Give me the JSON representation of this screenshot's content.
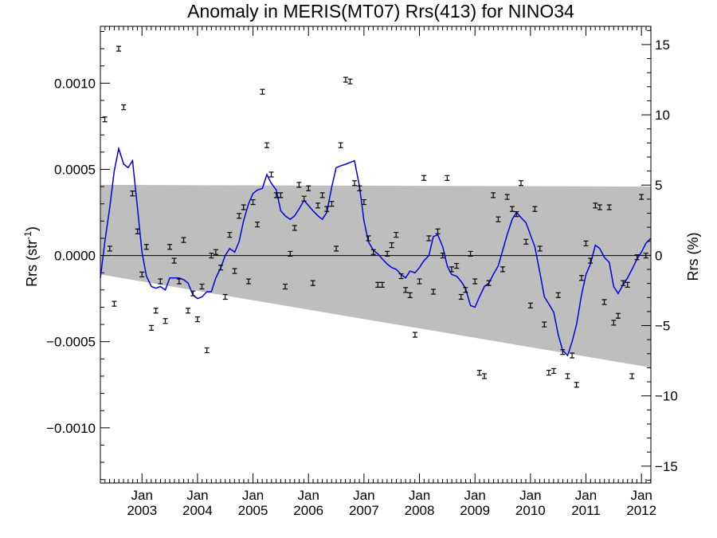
{
  "chart_data": {
    "type": "scatter",
    "title": "Anomaly in MERIS(MT07) Rrs(413) for NINO34",
    "ylabel_left": "Rrs (str",
    "ylabel_left_sup": "-1",
    "ylabel_left_close": ")",
    "ylabel_right": "Rrs (%)",
    "xlim": [
      2002.25,
      2012.17
    ],
    "ylim_left": [
      -0.00132,
      0.00133
    ],
    "ylim_right": [
      -16.2,
      16.3
    ],
    "x_ticks": [
      {
        "x": 2003.0,
        "month": "Jan",
        "year": "2003"
      },
      {
        "x": 2004.0,
        "month": "Jan",
        "year": "2004"
      },
      {
        "x": 2005.0,
        "month": "Jan",
        "year": "2005"
      },
      {
        "x": 2006.0,
        "month": "Jan",
        "year": "2006"
      },
      {
        "x": 2007.0,
        "month": "Jan",
        "year": "2007"
      },
      {
        "x": 2008.0,
        "month": "Jan",
        "year": "2008"
      },
      {
        "x": 2009.0,
        "month": "Jan",
        "year": "2009"
      },
      {
        "x": 2010.0,
        "month": "Jan",
        "year": "2010"
      },
      {
        "x": 2011.0,
        "month": "Jan",
        "year": "2011"
      },
      {
        "x": 2012.0,
        "month": "Jan",
        "year": "2012"
      }
    ],
    "y_left_ticks": [
      {
        "value": 0.001,
        "label": "0.0010"
      },
      {
        "value": 0.0005,
        "label": "0.0005"
      },
      {
        "value": 0.0,
        "label": "0.0000"
      },
      {
        "value": -0.0005,
        "label": "−0.0005"
      },
      {
        "value": -0.001,
        "label": "−0.0010"
      }
    ],
    "y_left_minor_step": 0.0001,
    "y_right_ticks": [
      {
        "value": 15,
        "label": "15"
      },
      {
        "value": 10,
        "label": "10"
      },
      {
        "value": 5,
        "label": "5"
      },
      {
        "value": 0,
        "label": "0"
      },
      {
        "value": -5,
        "label": "−5"
      },
      {
        "value": -10,
        "label": "−10"
      },
      {
        "value": -15,
        "label": "−15"
      }
    ],
    "y_right_minor_step": 1,
    "uncertainty_band": {
      "upper": [
        [
          2002.25,
          0.00041
        ],
        [
          2012.17,
          0.0004
        ]
      ],
      "lower": [
        [
          2002.25,
          -0.00011
        ],
        [
          2012.17,
          -0.00065
        ]
      ],
      "color": "#bebebe"
    },
    "zero_line": 0.0,
    "colors": {
      "smoothed_line": "#0000dd",
      "points": "#000000",
      "axes": "#000000"
    },
    "points": [
      [
        2002.33,
        0.00079
      ],
      [
        2002.42,
        4e-05
      ],
      [
        2002.5,
        -0.00028
      ],
      [
        2002.58,
        0.0012
      ],
      [
        2002.67,
        0.00086
      ],
      [
        2002.83,
        0.00036
      ],
      [
        2002.92,
        0.00014
      ],
      [
        2003.0,
        -0.00011
      ],
      [
        2003.08,
        5e-05
      ],
      [
        2003.17,
        -0.00042
      ],
      [
        2003.25,
        -0.00032
      ],
      [
        2003.33,
        -0.00015
      ],
      [
        2003.42,
        -0.00038
      ],
      [
        2003.5,
        5e-05
      ],
      [
        2003.58,
        -3e-05
      ],
      [
        2003.67,
        -0.00015
      ],
      [
        2003.75,
        9e-05
      ],
      [
        2003.83,
        -0.00032
      ],
      [
        2003.92,
        -0.00022
      ],
      [
        2004.0,
        -0.00037
      ],
      [
        2004.08,
        -0.00018
      ],
      [
        2004.17,
        -0.00055
      ],
      [
        2004.25,
        0.0
      ],
      [
        2004.33,
        2e-05
      ],
      [
        2004.42,
        -7e-05
      ],
      [
        2004.5,
        -0.00024
      ],
      [
        2004.58,
        0.00012
      ],
      [
        2004.67,
        -9e-05
      ],
      [
        2004.75,
        0.00023
      ],
      [
        2004.83,
        0.00028
      ],
      [
        2004.92,
        -0.00015
      ],
      [
        2005.0,
        0.00031
      ],
      [
        2005.08,
        0.00018
      ],
      [
        2005.17,
        0.00095
      ],
      [
        2005.25,
        0.00064
      ],
      [
        2005.33,
        0.00047
      ],
      [
        2005.42,
        0.00035
      ],
      [
        2005.5,
        0.00035
      ],
      [
        2005.58,
        -0.00018
      ],
      [
        2005.67,
        1e-05
      ],
      [
        2005.75,
        0.00016
      ],
      [
        2005.83,
        0.00041
      ],
      [
        2005.92,
        0.00033
      ],
      [
        2006.0,
        0.00039
      ],
      [
        2006.08,
        -0.00016
      ],
      [
        2006.17,
        0.00029
      ],
      [
        2006.25,
        0.00035
      ],
      [
        2006.33,
        0.00027
      ],
      [
        2006.42,
        0.0003
      ],
      [
        2006.5,
        4e-05
      ],
      [
        2006.58,
        0.00064
      ],
      [
        2006.67,
        0.00102
      ],
      [
        2006.75,
        0.00101
      ],
      [
        2006.83,
        0.00042
      ],
      [
        2006.92,
        0.00039
      ],
      [
        2007.0,
        0.00031
      ],
      [
        2007.08,
        0.0001
      ],
      [
        2007.17,
        2e-05
      ],
      [
        2007.25,
        -0.00017
      ],
      [
        2007.33,
        -0.00017
      ],
      [
        2007.42,
        1e-05
      ],
      [
        2007.5,
        6e-05
      ],
      [
        2007.58,
        0.00012
      ],
      [
        2007.67,
        -0.00012
      ],
      [
        2007.75,
        -0.0002
      ],
      [
        2007.83,
        -0.00023
      ],
      [
        2007.92,
        -0.00046
      ],
      [
        2008.0,
        -0.00015
      ],
      [
        2008.08,
        0.00045
      ],
      [
        2008.17,
        0.0001
      ],
      [
        2008.25,
        -0.00021
      ],
      [
        2008.33,
        0.00014
      ],
      [
        2008.42,
        0.0
      ],
      [
        2008.5,
        0.00045
      ],
      [
        2008.58,
        -8e-05
      ],
      [
        2008.67,
        -6e-05
      ],
      [
        2008.75,
        -0.00024
      ],
      [
        2008.83,
        -0.0002
      ],
      [
        2008.92,
        1e-05
      ],
      [
        2009.0,
        -0.00015
      ],
      [
        2009.08,
        -0.00068
      ],
      [
        2009.17,
        -0.0007
      ],
      [
        2009.25,
        -0.00016
      ],
      [
        2009.33,
        0.00035
      ],
      [
        2009.42,
        0.00021
      ],
      [
        2009.5,
        -8e-05
      ],
      [
        2009.58,
        0.00034
      ],
      [
        2009.67,
        0.00027
      ],
      [
        2009.75,
        0.00024
      ],
      [
        2009.83,
        0.00042
      ],
      [
        2009.92,
        8e-05
      ],
      [
        2010.0,
        -0.00029
      ],
      [
        2010.08,
        0.00027
      ],
      [
        2010.17,
        4e-05
      ],
      [
        2010.25,
        -0.0004
      ],
      [
        2010.33,
        -0.00068
      ],
      [
        2010.42,
        -0.00067
      ],
      [
        2010.5,
        -0.00023
      ],
      [
        2010.58,
        -0.00056
      ],
      [
        2010.67,
        -0.0007
      ],
      [
        2010.75,
        -0.00058
      ],
      [
        2010.83,
        -0.00075
      ],
      [
        2010.92,
        -0.00013
      ],
      [
        2011.0,
        7e-05
      ],
      [
        2011.08,
        -3e-05
      ],
      [
        2011.17,
        0.00029
      ],
      [
        2011.25,
        0.00028
      ],
      [
        2011.33,
        -0.00027
      ],
      [
        2011.42,
        0.00028
      ],
      [
        2011.5,
        -0.00039
      ],
      [
        2011.58,
        -0.00035
      ],
      [
        2011.67,
        -0.00016
      ],
      [
        2011.75,
        -0.00017
      ],
      [
        2011.83,
        -0.0007
      ],
      [
        2011.92,
        -1e-05
      ],
      [
        2012.0,
        0.00034
      ],
      [
        2012.08,
        0.0
      ]
    ],
    "smoothed_line": [
      [
        2002.25,
        -0.00013
      ],
      [
        2002.33,
        8e-05
      ],
      [
        2002.42,
        0.00028
      ],
      [
        2002.5,
        0.00049
      ],
      [
        2002.58,
        0.00062
      ],
      [
        2002.67,
        0.00053
      ],
      [
        2002.75,
        0.00051
      ],
      [
        2002.83,
        0.00055
      ],
      [
        2002.92,
        0.00027
      ],
      [
        2003.0,
        2e-05
      ],
      [
        2003.08,
        -0.00012
      ],
      [
        2003.17,
        -0.00018
      ],
      [
        2003.25,
        -0.00019
      ],
      [
        2003.33,
        -0.00018
      ],
      [
        2003.42,
        -0.0002
      ],
      [
        2003.5,
        -0.00013
      ],
      [
        2003.58,
        -0.00013
      ],
      [
        2003.67,
        -0.00013
      ],
      [
        2003.75,
        -0.00014
      ],
      [
        2003.83,
        -0.00016
      ],
      [
        2003.92,
        -0.00023
      ],
      [
        2004.0,
        -0.00025
      ],
      [
        2004.08,
        -0.00024
      ],
      [
        2004.17,
        -0.00021
      ],
      [
        2004.25,
        -0.00021
      ],
      [
        2004.33,
        -0.00013
      ],
      [
        2004.42,
        -7e-05
      ],
      [
        2004.5,
        0.0
      ],
      [
        2004.58,
        4e-05
      ],
      [
        2004.67,
        2e-05
      ],
      [
        2004.75,
        8e-05
      ],
      [
        2004.83,
        0.0002
      ],
      [
        2004.92,
        0.0003
      ],
      [
        2005.0,
        0.00036
      ],
      [
        2005.08,
        0.00038
      ],
      [
        2005.17,
        0.00039
      ],
      [
        2005.25,
        0.00047
      ],
      [
        2005.33,
        0.00042
      ],
      [
        2005.42,
        0.00038
      ],
      [
        2005.5,
        0.00026
      ],
      [
        2005.58,
        0.00023
      ],
      [
        2005.67,
        0.00021
      ],
      [
        2005.75,
        0.00023
      ],
      [
        2005.83,
        0.00027
      ],
      [
        2005.92,
        0.00032
      ],
      [
        2006.0,
        0.00029
      ],
      [
        2006.08,
        0.00026
      ],
      [
        2006.17,
        0.00023
      ],
      [
        2006.25,
        0.00021
      ],
      [
        2006.33,
        0.00025
      ],
      [
        2006.42,
        0.0004
      ],
      [
        2006.5,
        0.00051
      ],
      [
        2006.58,
        0.00052
      ],
      [
        2006.67,
        0.00053
      ],
      [
        2006.75,
        0.00054
      ],
      [
        2006.83,
        0.00055
      ],
      [
        2006.92,
        0.0004
      ],
      [
        2007.0,
        0.0002
      ],
      [
        2007.08,
        8e-05
      ],
      [
        2007.17,
        3e-05
      ],
      [
        2007.25,
        1e-05
      ],
      [
        2007.33,
        -2e-05
      ],
      [
        2007.42,
        -5e-05
      ],
      [
        2007.5,
        -7e-05
      ],
      [
        2007.58,
        -8e-05
      ],
      [
        2007.67,
        -0.00011
      ],
      [
        2007.75,
        -0.00013
      ],
      [
        2007.83,
        -9e-05
      ],
      [
        2007.92,
        -0.0001
      ],
      [
        2008.0,
        -7e-05
      ],
      [
        2008.08,
        -3e-05
      ],
      [
        2008.17,
        0.0
      ],
      [
        2008.25,
        0.00011
      ],
      [
        2008.33,
        0.00012
      ],
      [
        2008.42,
        5e-05
      ],
      [
        2008.5,
        -6e-05
      ],
      [
        2008.58,
        -0.00011
      ],
      [
        2008.67,
        -0.00012
      ],
      [
        2008.75,
        -0.00015
      ],
      [
        2008.83,
        -0.00019
      ],
      [
        2008.92,
        -0.00029
      ],
      [
        2009.0,
        -0.0003
      ],
      [
        2009.08,
        -0.00024
      ],
      [
        2009.17,
        -0.00018
      ],
      [
        2009.25,
        -0.00016
      ],
      [
        2009.33,
        -0.00011
      ],
      [
        2009.42,
        -6e-05
      ],
      [
        2009.5,
        3e-05
      ],
      [
        2009.58,
        0.00012
      ],
      [
        2009.67,
        0.00021
      ],
      [
        2009.75,
        0.00025
      ],
      [
        2009.83,
        0.00022
      ],
      [
        2009.92,
        0.00019
      ],
      [
        2010.0,
        0.00012
      ],
      [
        2010.08,
        5e-05
      ],
      [
        2010.17,
        -0.0001
      ],
      [
        2010.25,
        -0.00024
      ],
      [
        2010.33,
        -0.00028
      ],
      [
        2010.42,
        -0.00033
      ],
      [
        2010.5,
        -0.00046
      ],
      [
        2010.58,
        -0.00055
      ],
      [
        2010.67,
        -0.00058
      ],
      [
        2010.75,
        -0.0005
      ],
      [
        2010.83,
        -0.0004
      ],
      [
        2010.92,
        -0.00023
      ],
      [
        2011.0,
        -0.00011
      ],
      [
        2011.08,
        -5e-05
      ],
      [
        2011.17,
        6e-05
      ],
      [
        2011.25,
        4e-05
      ],
      [
        2011.33,
        -1e-05
      ],
      [
        2011.42,
        -4e-05
      ],
      [
        2011.5,
        -0.00018
      ],
      [
        2011.58,
        -0.00022
      ],
      [
        2011.67,
        -0.00017
      ],
      [
        2011.75,
        -0.00013
      ],
      [
        2011.83,
        -8e-05
      ],
      [
        2011.92,
        -2e-05
      ],
      [
        2012.0,
        2e-05
      ],
      [
        2012.08,
        7e-05
      ],
      [
        2012.17,
        0.0001
      ]
    ]
  }
}
